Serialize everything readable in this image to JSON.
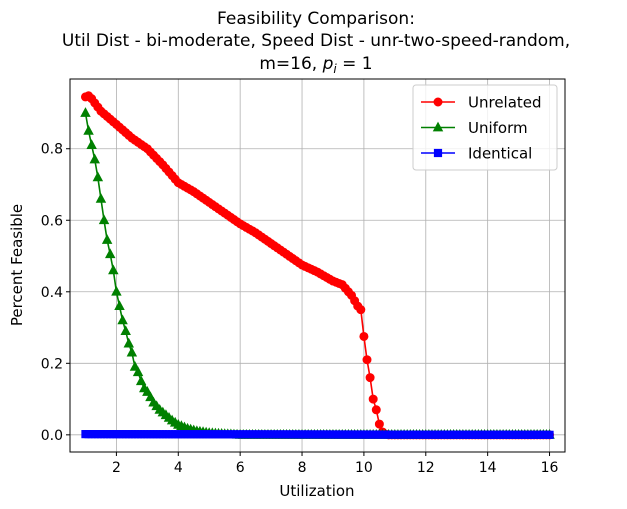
{
  "chart_data": {
    "type": "line",
    "title_lines": [
      "Feasibility Comparison:",
      "Util Dist - bi-moderate, Speed Dist - unr-two-speed-random,"
    ],
    "title_line3_prefix": "m=16, ",
    "title_line3_var": "p",
    "title_line3_sub": "i",
    "title_line3_suffix": " = 1",
    "xlabel": "Utilization",
    "ylabel": "Percent Feasible",
    "xlim": [
      0.5,
      16.5
    ],
    "ylim": [
      -0.048,
      0.995
    ],
    "xticks": [
      2,
      4,
      6,
      8,
      10,
      12,
      14,
      16
    ],
    "xtick_labels": [
      "2",
      "4",
      "6",
      "8",
      "10",
      "12",
      "14",
      "16"
    ],
    "yticks": [
      0.0,
      0.2,
      0.4,
      0.6,
      0.8
    ],
    "ytick_labels": [
      "0.0",
      "0.2",
      "0.4",
      "0.6",
      "0.8"
    ],
    "grid": true,
    "legend_position": "top-right",
    "x_range": [
      1.0,
      16.0
    ],
    "x_step": 0.1,
    "series": [
      {
        "name": "Unrelated",
        "color": "#ff0000",
        "marker": "circle",
        "knots": [
          [
            1.0,
            0.945
          ],
          [
            1.1,
            0.948
          ],
          [
            1.2,
            0.94
          ],
          [
            1.3,
            0.928
          ],
          [
            1.5,
            0.905
          ],
          [
            2.0,
            0.868
          ],
          [
            2.5,
            0.83
          ],
          [
            3.0,
            0.8
          ],
          [
            3.5,
            0.755
          ],
          [
            4.0,
            0.705
          ],
          [
            4.5,
            0.68
          ],
          [
            5.0,
            0.65
          ],
          [
            5.5,
            0.62
          ],
          [
            6.0,
            0.59
          ],
          [
            6.5,
            0.565
          ],
          [
            7.0,
            0.535
          ],
          [
            7.5,
            0.505
          ],
          [
            8.0,
            0.475
          ],
          [
            8.5,
            0.455
          ],
          [
            9.0,
            0.43
          ],
          [
            9.3,
            0.42
          ],
          [
            9.6,
            0.39
          ],
          [
            9.8,
            0.36
          ],
          [
            9.9,
            0.35
          ],
          [
            10.0,
            0.275
          ],
          [
            10.1,
            0.21
          ],
          [
            10.2,
            0.16
          ],
          [
            10.3,
            0.1
          ],
          [
            10.4,
            0.07
          ],
          [
            10.5,
            0.03
          ],
          [
            10.6,
            0.008
          ],
          [
            10.7,
            0.002
          ],
          [
            10.8,
            0.0
          ],
          [
            16.0,
            0.0
          ]
        ]
      },
      {
        "name": "Uniform",
        "color": "#008000",
        "marker": "triangle",
        "knots": [
          [
            1.0,
            0.9
          ],
          [
            1.1,
            0.85
          ],
          [
            1.2,
            0.81
          ],
          [
            1.3,
            0.77
          ],
          [
            1.4,
            0.72
          ],
          [
            1.5,
            0.66
          ],
          [
            1.6,
            0.6
          ],
          [
            1.7,
            0.545
          ],
          [
            1.8,
            0.505
          ],
          [
            1.9,
            0.46
          ],
          [
            2.0,
            0.4
          ],
          [
            2.1,
            0.36
          ],
          [
            2.2,
            0.32
          ],
          [
            2.3,
            0.29
          ],
          [
            2.4,
            0.255
          ],
          [
            2.5,
            0.23
          ],
          [
            2.6,
            0.19
          ],
          [
            2.7,
            0.175
          ],
          [
            2.8,
            0.15
          ],
          [
            2.9,
            0.13
          ],
          [
            3.0,
            0.12
          ],
          [
            3.2,
            0.09
          ],
          [
            3.4,
            0.07
          ],
          [
            3.6,
            0.055
          ],
          [
            3.8,
            0.04
          ],
          [
            4.0,
            0.028
          ],
          [
            4.3,
            0.017
          ],
          [
            4.6,
            0.01
          ],
          [
            5.0,
            0.005
          ],
          [
            5.5,
            0.002
          ],
          [
            6.0,
            0.0
          ],
          [
            16.0,
            0.0
          ]
        ]
      },
      {
        "name": "Identical",
        "color": "#0000ff",
        "marker": "square",
        "knots": [
          [
            1.0,
            0.002
          ],
          [
            16.0,
            0.0
          ]
        ]
      }
    ]
  }
}
